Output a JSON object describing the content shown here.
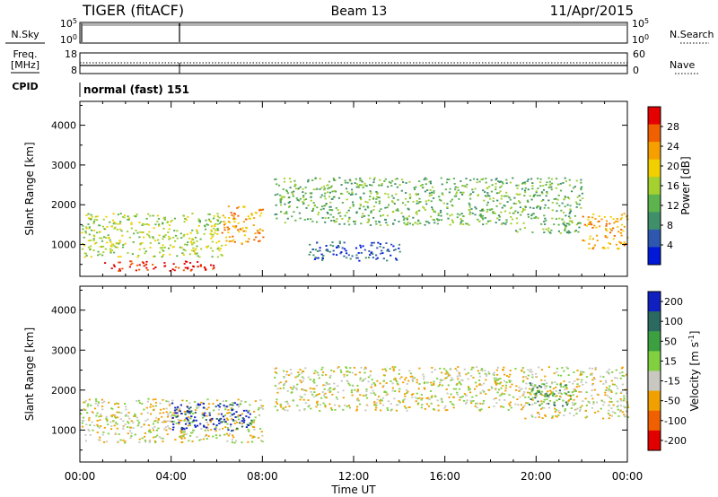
{
  "header": {
    "station": "TIGER (fitACF)",
    "beam": "Beam 13",
    "date": "11/Apr/2015"
  },
  "top_panels": {
    "nsky_label": "N.Sky",
    "nsky_ticks": [
      "10^5",
      "10^0"
    ],
    "nsearch_label": "N.Search",
    "nsearch_ticks": [
      "10^5",
      "10^0"
    ],
    "freq_label_1": "Freq.",
    "freq_label_2": "[MHz]",
    "freq_ticks": [
      "18",
      "8"
    ],
    "nave_label": "Nave",
    "nave_ticks": [
      "60",
      "0"
    ],
    "cpid_label": "CPID",
    "cpid_value": "normal (fast) 151"
  },
  "chart_data": [
    {
      "type": "heatmap",
      "panel": "power",
      "ylabel": "Slant Range [km]",
      "ylim": [
        200,
        4600
      ],
      "yticks": [
        1000,
        2000,
        3000,
        4000
      ],
      "xlim": [
        0,
        24
      ],
      "x_units": "hours UT",
      "colorbar": {
        "label": "Power [dB]",
        "range": [
          0,
          32
        ],
        "ticks": [
          4,
          8,
          12,
          16,
          20,
          24,
          28
        ],
        "colors": [
          "#0018d8",
          "#2e58b0",
          "#3f8f6b",
          "#5db34d",
          "#a4d030",
          "#f0d000",
          "#f5a000",
          "#f06000",
          "#e40000"
        ]
      },
      "echo_bands": [
        {
          "t0": 0.0,
          "t1": 6.2,
          "r0": 700,
          "r1": 1800,
          "level": 16
        },
        {
          "t0": 1.0,
          "t1": 6.0,
          "r0": 350,
          "r1": 600,
          "level": 30
        },
        {
          "t0": 6.2,
          "t1": 8.0,
          "r0": 1000,
          "r1": 2000,
          "level": 22
        },
        {
          "t0": 8.5,
          "t1": 19.0,
          "r0": 1500,
          "r1": 2700,
          "level": 14
        },
        {
          "t0": 10.0,
          "t1": 14.0,
          "r0": 600,
          "r1": 1100,
          "level": 6
        },
        {
          "t0": 19.0,
          "t1": 22.0,
          "r0": 1300,
          "r1": 2700,
          "level": 14
        },
        {
          "t0": 22.0,
          "t1": 24.0,
          "r0": 900,
          "r1": 1800,
          "level": 22
        }
      ]
    },
    {
      "type": "heatmap",
      "panel": "velocity",
      "xlabel": "Time UT",
      "ylabel": "Slant Range [km]",
      "ylim": [
        200,
        4600
      ],
      "yticks": [
        1000,
        2000,
        3000,
        4000
      ],
      "xlim": [
        0,
        24
      ],
      "xticks": [
        "00:00",
        "04:00",
        "08:00",
        "12:00",
        "16:00",
        "20:00",
        "00:00"
      ],
      "colorbar": {
        "label": "Velocity [m s^-1]",
        "ticks": [
          "200",
          "100",
          "50",
          "15",
          "-15",
          "-50",
          "-100",
          "-200"
        ],
        "colors": [
          "#1020c0",
          "#2a6a60",
          "#3ca040",
          "#80d040",
          "#c8c8c0",
          "#f0a000",
          "#f06000",
          "#e00000"
        ]
      },
      "echo_bands": [
        {
          "t0": 0.0,
          "t1": 8.0,
          "r0": 700,
          "r1": 1800,
          "level": "-15..15"
        },
        {
          "t0": 4.0,
          "t1": 7.5,
          "r0": 1000,
          "r1": 1700,
          "level": "100..200"
        },
        {
          "t0": 8.5,
          "t1": 19.0,
          "r0": 1500,
          "r1": 2600,
          "level": "-15..15"
        },
        {
          "t0": 19.0,
          "t1": 24.0,
          "r0": 1300,
          "r1": 2600,
          "level": "-15..15"
        },
        {
          "t0": 19.5,
          "t1": 21.5,
          "r0": 1600,
          "r1": 2200,
          "level": "50"
        }
      ]
    }
  ]
}
